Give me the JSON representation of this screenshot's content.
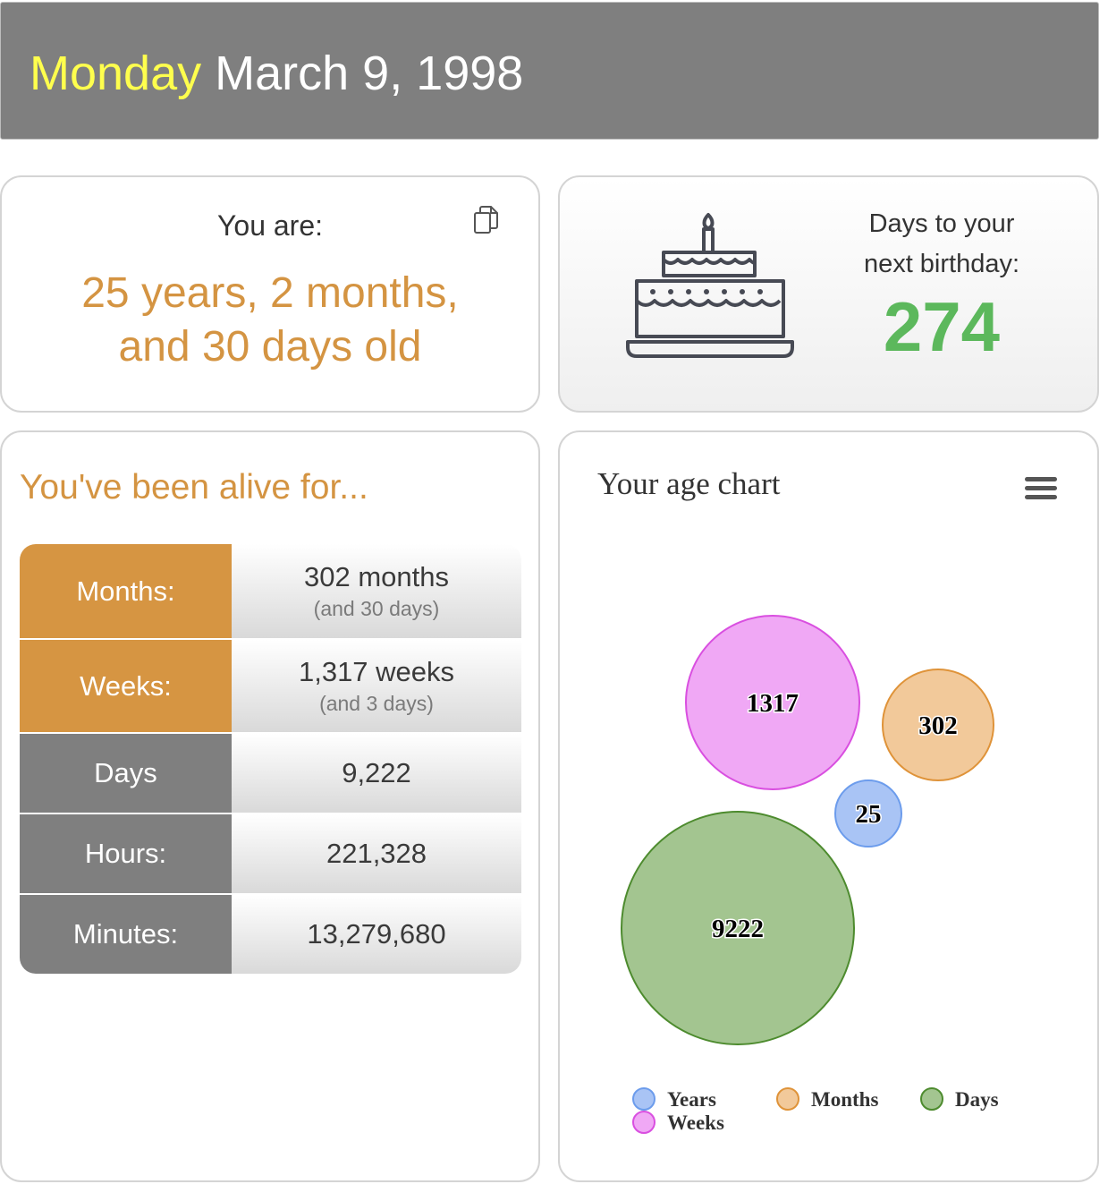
{
  "header": {
    "day_of_week": "Monday",
    "date": "March 9, 1998"
  },
  "age_card": {
    "label": "You are:",
    "value_line1": "25 years, 2 months,",
    "value_line2": "and 30 days old",
    "copy_icon": "copy-icon"
  },
  "birthday_card": {
    "label_line1": "Days to your",
    "label_line2": "next birthday:",
    "days": "274",
    "cake_icon": "birthday-cake-icon"
  },
  "alive_card": {
    "title": "You've been alive for...",
    "rows": [
      {
        "label": "Months:",
        "value": "302 months",
        "sub": "(and 30 days)"
      },
      {
        "label": "Weeks:",
        "value": "1,317 weeks",
        "sub": "(and 3 days)"
      },
      {
        "label": "Days",
        "value": "9,222",
        "sub": ""
      },
      {
        "label": "Hours:",
        "value": "221,328",
        "sub": ""
      },
      {
        "label": "Minutes:",
        "value": "13,279,680",
        "sub": ""
      }
    ]
  },
  "chart_card": {
    "title": "Your age chart",
    "menu_icon": "hamburger-menu-icon"
  },
  "chart_data": {
    "type": "packed-bubble",
    "title": "Your age chart",
    "series": [
      {
        "name": "Years",
        "value": 25,
        "color": "#a9c4f5"
      },
      {
        "name": "Weeks",
        "value": 1317,
        "color": "#f0a8f5"
      },
      {
        "name": "Months",
        "value": 302,
        "color": "#f2c99a"
      },
      {
        "name": "Days",
        "value": 9222,
        "color": "#a3c590"
      }
    ],
    "legend_order": [
      "Years",
      "Months",
      "Days",
      "Weeks"
    ],
    "legend_position": "bottom"
  }
}
